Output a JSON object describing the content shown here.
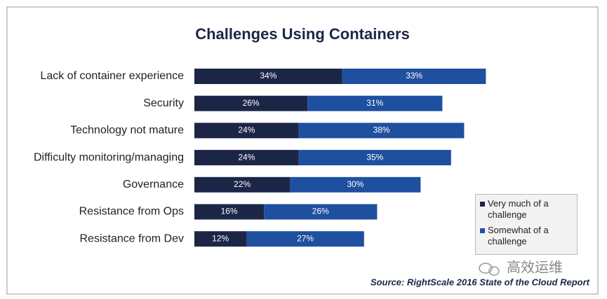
{
  "chart_data": {
    "type": "bar",
    "orientation": "horizontal",
    "stacked": true,
    "title": "Challenges Using Containers",
    "categories": [
      "Lack of container experience",
      "Security",
      "Technology not mature",
      "Difficulty monitoring/managing",
      "Governance",
      "Resistance from Ops",
      "Resistance from Dev"
    ],
    "series": [
      {
        "name": "Very much of a challenge",
        "color": "#1b2647",
        "values": [
          34,
          26,
          24,
          24,
          22,
          16,
          12
        ],
        "value_labels": [
          "34%",
          "26%",
          "24%",
          "24%",
          "22%",
          "16%",
          "12%"
        ]
      },
      {
        "name": "Somewhat of a challenge",
        "color": "#1f4f9f",
        "values": [
          33,
          31,
          38,
          35,
          30,
          26,
          27
        ],
        "value_labels": [
          "33%",
          "31%",
          "38%",
          "35%",
          "30%",
          "26%",
          "27%"
        ]
      }
    ],
    "legend": "bottom-right",
    "source": "Source: RightScale 2016 State of the Cloud Report",
    "watermark": "高效运维"
  }
}
